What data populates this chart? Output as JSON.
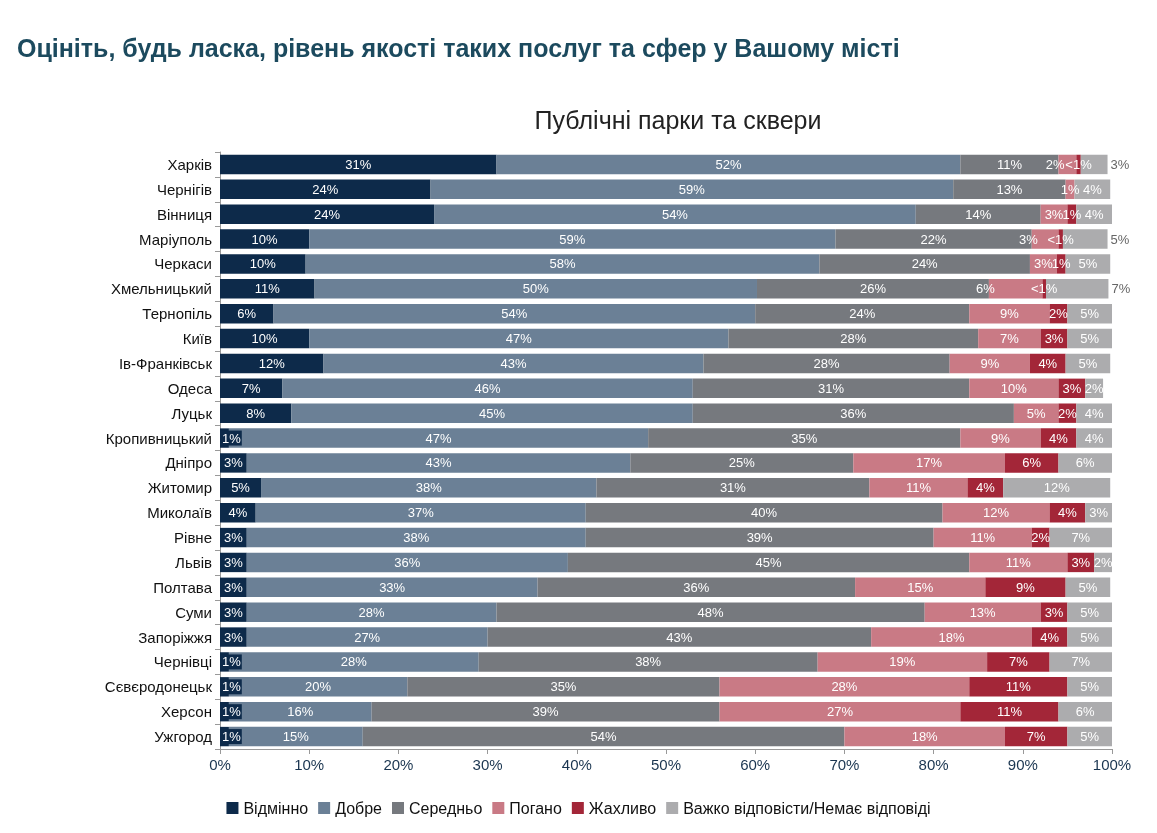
{
  "chart_data": {
    "type": "bar",
    "orientation": "horizontal",
    "stacked": true,
    "title": "Оцініть, будь ласка, рівень якості таких послуг та сфер у Вашому місті",
    "subtitle": "Публічні парки та сквери",
    "categories": [
      "Харків",
      "Чернігів",
      "Вінниця",
      "Маріуполь",
      "Черкаси",
      "Хмельницький",
      "Тернопіль",
      "Київ",
      "Ів-Франківськ",
      "Одеса",
      "Луцьк",
      "Кропивницький",
      "Дніпро",
      "Житомир",
      "Миколаїв",
      "Рівне",
      "Львів",
      "Полтава",
      "Суми",
      "Запоріжжя",
      "Чернівці",
      "Сєвєродонецьк",
      "Херсон",
      "Ужгород"
    ],
    "series": [
      {
        "name": "Відмінно",
        "color": "#0d2a4a",
        "values": [
          31,
          23.6,
          24,
          10,
          9.6,
          10.6,
          6,
          10,
          11.6,
          7,
          8,
          1,
          3,
          4.6,
          4,
          3,
          3,
          3,
          3,
          3,
          1,
          1,
          1,
          1
        ],
        "value_labels": [
          "31%",
          "24%",
          "24%",
          "10%",
          "10%",
          "11%",
          "6%",
          "10%",
          "12%",
          "7%",
          "8%",
          "1%",
          "3%",
          "5%",
          "4%",
          "3%",
          "3%",
          "3%",
          "3%",
          "3%",
          "1%",
          "1%",
          "1%",
          "1%"
        ]
      },
      {
        "name": "Добре",
        "color": "#6b8096",
        "values": [
          52,
          58.6,
          54,
          59,
          57.6,
          49.6,
          54,
          47,
          42.6,
          46,
          45,
          47,
          43,
          37.6,
          37,
          38,
          36,
          32.6,
          28,
          27,
          28,
          20,
          16,
          15
        ],
        "value_labels": [
          "52%",
          "59%",
          "54%",
          "59%",
          "58%",
          "50%",
          "54%",
          "47%",
          "43%",
          "46%",
          "45%",
          "47%",
          "43%",
          "38%",
          "37%",
          "38%",
          "36%",
          "33%",
          "28%",
          "27%",
          "28%",
          "20%",
          "16%",
          "15%"
        ]
      },
      {
        "name": "Середньо",
        "color": "#76797e",
        "values": [
          11,
          12.6,
          14,
          22,
          23.6,
          26,
          24,
          28,
          27.6,
          31,
          36,
          35,
          25,
          30.6,
          40,
          39,
          45,
          35.6,
          48,
          43,
          38,
          35,
          39,
          54
        ],
        "value_labels": [
          "11%",
          "13%",
          "14%",
          "22%",
          "24%",
          "26%",
          "24%",
          "28%",
          "28%",
          "31%",
          "36%",
          "35%",
          "25%",
          "31%",
          "40%",
          "39%",
          "45%",
          "36%",
          "48%",
          "43%",
          "38%",
          "35%",
          "39%",
          "54%"
        ]
      },
      {
        "name": "Погано",
        "color": "#c97a85",
        "values": [
          2,
          1,
          3,
          3,
          3,
          6,
          9,
          7,
          9,
          10,
          5,
          9,
          17,
          11,
          12,
          11,
          11,
          14.6,
          13,
          18,
          19,
          28,
          27,
          18
        ],
        "value_labels": [
          "2%",
          "1%",
          "3%",
          "3%",
          "3%",
          "6%",
          "9%",
          "7%",
          "9%",
          "10%",
          "5%",
          "9%",
          "17%",
          "11%",
          "12%",
          "11%",
          "11%",
          "15%",
          "13%",
          "18%",
          "19%",
          "28%",
          "27%",
          "18%"
        ]
      },
      {
        "name": "Жахливо",
        "color": "#a32638",
        "values": [
          0.5,
          null,
          1,
          0.5,
          1,
          0.4,
          2,
          3,
          4,
          3,
          2,
          4,
          6,
          4,
          4,
          2,
          3,
          9,
          3,
          4,
          7,
          11,
          11,
          7
        ],
        "value_labels": [
          "<1%",
          null,
          "1%",
          "<1%",
          "1%",
          "<1%",
          "2%",
          "3%",
          "4%",
          "3%",
          "2%",
          "4%",
          "6%",
          "4%",
          "4%",
          "2%",
          "3%",
          "9%",
          "3%",
          "4%",
          "7%",
          "11%",
          "11%",
          "7%"
        ]
      },
      {
        "name": "Важко відповісти/Немає відповіді",
        "color": "#acacae",
        "values": [
          3,
          4,
          4,
          5,
          5,
          7,
          5,
          5,
          5,
          2,
          4,
          4,
          6,
          12,
          3,
          7,
          2,
          5,
          5,
          5,
          7,
          5,
          6,
          5
        ],
        "value_labels": [
          "3%",
          "4%",
          "4%",
          "5%",
          "5%",
          "7%",
          "5%",
          "5%",
          "5%",
          "2%",
          "4%",
          "4%",
          "6%",
          "12%",
          "3%",
          "7%",
          "2%",
          "5%",
          "5%",
          "5%",
          "7%",
          "5%",
          "6%",
          "5%"
        ]
      }
    ],
    "xlim": [
      0,
      100
    ],
    "xticks": [
      {
        "value": 0,
        "label": "0%"
      },
      {
        "value": 10,
        "label": "10%"
      },
      {
        "value": 20,
        "label": "20%"
      },
      {
        "value": 30,
        "label": "30%"
      },
      {
        "value": 40,
        "label": "40%"
      },
      {
        "value": 50,
        "label": "50%"
      },
      {
        "value": 60,
        "label": "60%"
      },
      {
        "value": 70,
        "label": "70%"
      },
      {
        "value": 80,
        "label": "80%"
      },
      {
        "value": 90,
        "label": "90%"
      },
      {
        "value": 100,
        "label": "100%"
      }
    ],
    "grid": false,
    "legend": "bottom"
  }
}
